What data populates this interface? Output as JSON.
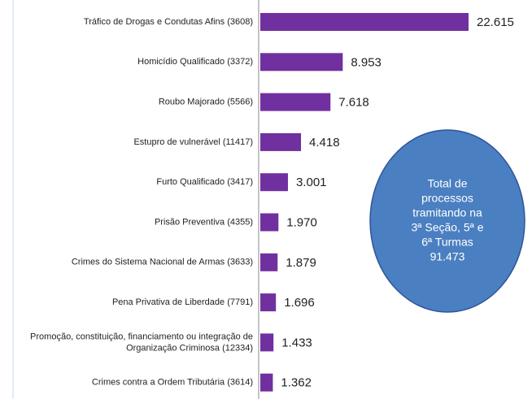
{
  "chart_data": {
    "type": "bar",
    "orientation": "horizontal",
    "categories": [
      "Tráfico de Drogas e Condutas Afins (3608)",
      "Homicídio Qualificado (3372)",
      "Roubo Majorado (5566)",
      "Estupro de vulnerável (11417)",
      "Furto Qualificado (3417)",
      "Prisão Preventiva (4355)",
      "Crimes do Sistema Nacional de Armas (3633)",
      "Pena Privativa de Liberdade (7791)",
      "Promoção, constituição, financiamento ou integração de Organização Criminosa (12334)",
      "Crimes contra a Ordem Tributária (3614)"
    ],
    "values": [
      22615,
      8953,
      7618,
      4418,
      3001,
      1970,
      1879,
      1696,
      1433,
      1362
    ],
    "value_labels": [
      "22.615",
      "8.953",
      "7.618",
      "4.418",
      "3.001",
      "1.970",
      "1.879",
      "1.696",
      "1.433",
      "1.362"
    ],
    "color": "#7030a0",
    "annotation": [
      "Total de",
      "processos",
      "tramitando na",
      "3ª Seção, 5ª e",
      "6ª Turmas",
      "91.473"
    ]
  }
}
